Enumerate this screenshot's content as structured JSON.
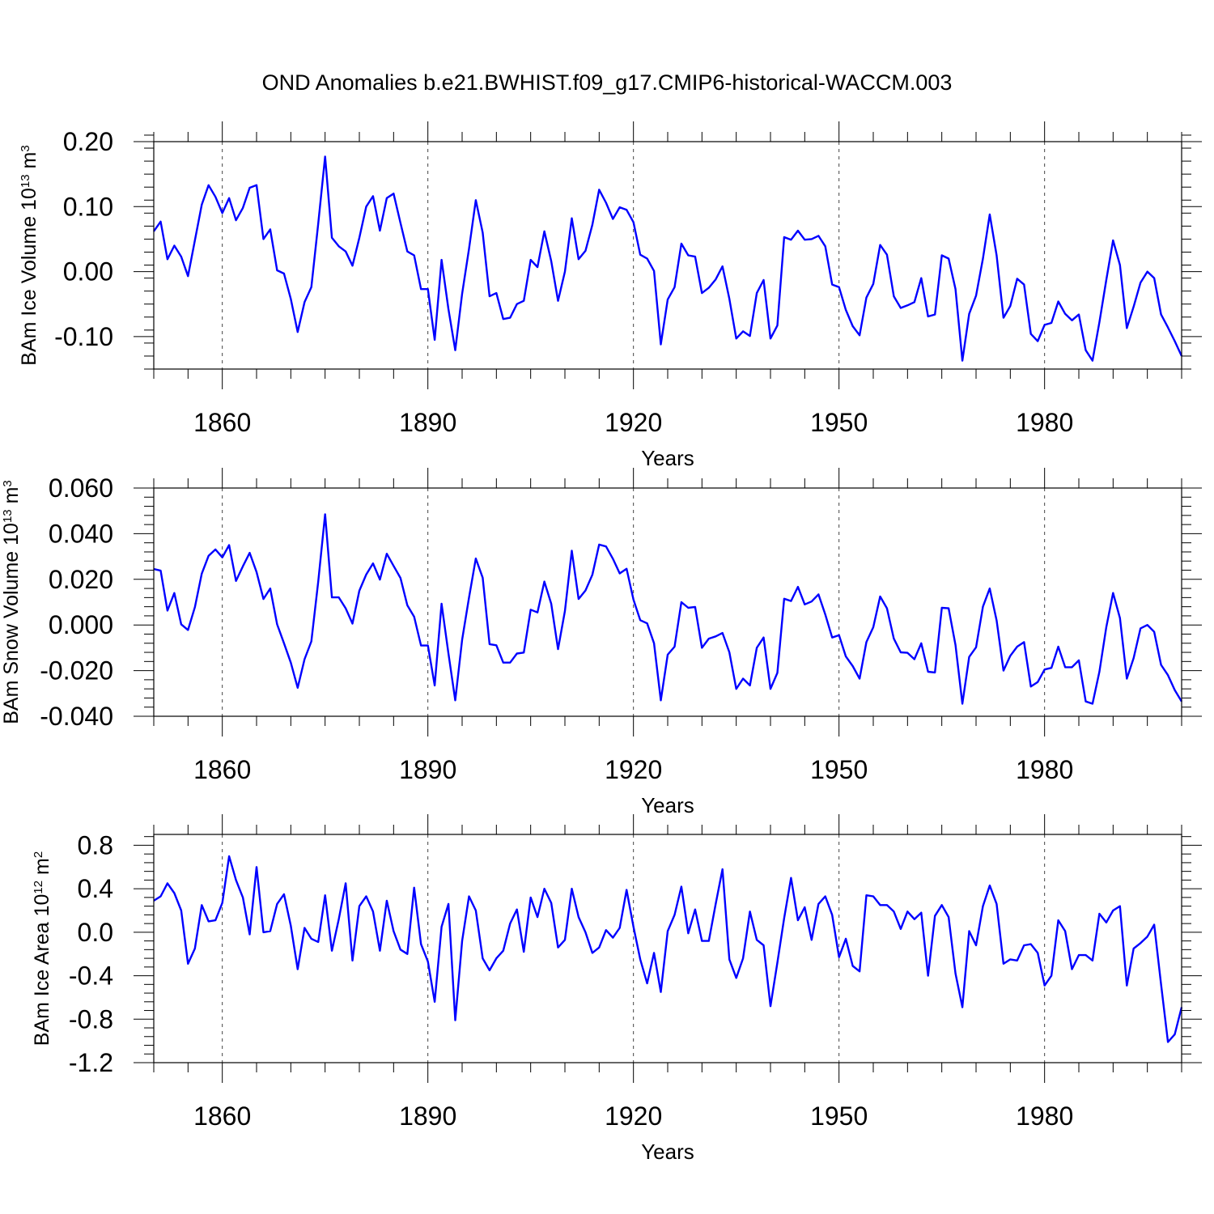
{
  "title": "OND Anomalies b.e21.BWHIST.f09_g17.CMIP6-historical-WACCM.003",
  "line_color": "#0000ff",
  "chart_data": [
    {
      "type": "line",
      "ylabel_prefix": "BAm Ice Volume 10",
      "ylabel_exp": "13",
      "ylabel_unit": " m",
      "ylabel_unit_exp": "3",
      "xlabel": "Years",
      "xlim": [
        1850,
        2000
      ],
      "ylim": [
        -0.15,
        0.2
      ],
      "xticks": [
        1860,
        1890,
        1920,
        1950,
        1980
      ],
      "xtick_labels": [
        "1860",
        "1890",
        "1920",
        "1950",
        "1980"
      ],
      "yticks": [
        -0.1,
        0.0,
        0.1,
        0.2
      ],
      "ytick_labels": [
        "-0.10",
        "0.00",
        "0.10",
        "0.20"
      ],
      "x": [
        1850,
        1851,
        1852,
        1853,
        1854,
        1855,
        1856,
        1857,
        1858,
        1859,
        1860,
        1861,
        1862,
        1863,
        1864,
        1865,
        1866,
        1867,
        1868,
        1869,
        1870,
        1871,
        1872,
        1873,
        1874,
        1875,
        1876,
        1877,
        1878,
        1879,
        1880,
        1881,
        1882,
        1883,
        1884,
        1885,
        1886,
        1887,
        1888,
        1889,
        1890,
        1891,
        1892,
        1893,
        1894,
        1895,
        1896,
        1897,
        1898,
        1899,
        1900,
        1901,
        1902,
        1903,
        1904,
        1905,
        1906,
        1907,
        1908,
        1909,
        1910,
        1911,
        1912,
        1913,
        1914,
        1915,
        1916,
        1917,
        1918,
        1919,
        1920,
        1921,
        1922,
        1923,
        1924,
        1925,
        1926,
        1927,
        1928,
        1929,
        1930,
        1931,
        1932,
        1933,
        1934,
        1935,
        1936,
        1937,
        1938,
        1939,
        1940,
        1941,
        1942,
        1943,
        1944,
        1945,
        1946,
        1947,
        1948,
        1949,
        1950,
        1951,
        1952,
        1953,
        1954,
        1955,
        1956,
        1957,
        1958,
        1959,
        1960,
        1961,
        1962,
        1963,
        1964,
        1965,
        1966,
        1967,
        1968,
        1969,
        1970,
        1971,
        1972,
        1973,
        1974,
        1975,
        1976,
        1977,
        1978,
        1979,
        1980,
        1981,
        1982,
        1983,
        1984,
        1985,
        1986,
        1987,
        1988,
        1989,
        1990,
        1991,
        1992,
        1993,
        1994,
        1995,
        1996,
        1997,
        1998,
        1999,
        2000
      ],
      "values": [
        0.062,
        0.077,
        0.019,
        0.04,
        0.023,
        -0.007,
        0.048,
        0.103,
        0.133,
        0.115,
        0.09,
        0.113,
        0.079,
        0.098,
        0.129,
        0.133,
        0.05,
        0.065,
        0.002,
        -0.003,
        -0.042,
        -0.093,
        -0.047,
        -0.024,
        0.074,
        0.177,
        0.052,
        0.039,
        0.031,
        0.009,
        0.052,
        0.1,
        0.116,
        0.063,
        0.113,
        0.12,
        0.075,
        0.031,
        0.025,
        -0.027,
        -0.027,
        -0.105,
        0.018,
        -0.058,
        -0.121,
        -0.034,
        0.035,
        0.11,
        0.06,
        -0.038,
        -0.033,
        -0.073,
        -0.071,
        -0.05,
        -0.045,
        0.018,
        0.007,
        0.062,
        0.016,
        -0.045,
        0.0,
        0.082,
        0.019,
        0.032,
        0.072,
        0.126,
        0.106,
        0.081,
        0.099,
        0.095,
        0.076,
        0.026,
        0.02,
        0.001,
        -0.112,
        -0.043,
        -0.024,
        0.043,
        0.025,
        0.023,
        -0.033,
        -0.025,
        -0.012,
        0.008,
        -0.042,
        -0.103,
        -0.092,
        -0.099,
        -0.033,
        -0.013,
        -0.103,
        -0.083,
        0.053,
        0.049,
        0.063,
        0.049,
        0.05,
        0.055,
        0.039,
        -0.02,
        -0.024,
        -0.059,
        -0.084,
        -0.098,
        -0.04,
        -0.019,
        0.041,
        0.026,
        -0.038,
        -0.056,
        -0.052,
        -0.047,
        -0.01,
        -0.069,
        -0.066,
        0.025,
        0.02,
        -0.027,
        -0.137,
        -0.065,
        -0.037,
        0.02,
        0.088,
        0.025,
        -0.071,
        -0.053,
        -0.011,
        -0.02,
        -0.096,
        -0.107,
        -0.082,
        -0.079,
        -0.046,
        -0.065,
        -0.075,
        -0.066,
        -0.121,
        -0.137,
        -0.078,
        -0.013,
        0.048,
        0.01,
        -0.087,
        -0.054,
        -0.017,
        0.0,
        -0.01,
        -0.066,
        -0.086,
        -0.107,
        -0.13
      ]
    },
    {
      "type": "line",
      "ylabel_prefix": "BAm Snow Volume 10",
      "ylabel_exp": "13",
      "ylabel_unit": " m",
      "ylabel_unit_exp": "3",
      "xlabel": "Years",
      "xlim": [
        1850,
        2000
      ],
      "ylim": [
        -0.04,
        0.06
      ],
      "xticks": [
        1860,
        1890,
        1920,
        1950,
        1980
      ],
      "xtick_labels": [
        "1860",
        "1890",
        "1920",
        "1950",
        "1980"
      ],
      "yticks": [
        -0.04,
        -0.02,
        0.0,
        0.02,
        0.04,
        0.06
      ],
      "ytick_labels": [
        "-0.040",
        "-0.020",
        "0.000",
        "0.020",
        "0.040",
        "0.060"
      ],
      "x": [
        1850,
        1851,
        1852,
        1853,
        1854,
        1855,
        1856,
        1857,
        1858,
        1859,
        1860,
        1861,
        1862,
        1863,
        1864,
        1865,
        1866,
        1867,
        1868,
        1869,
        1870,
        1871,
        1872,
        1873,
        1874,
        1875,
        1876,
        1877,
        1878,
        1879,
        1880,
        1881,
        1882,
        1883,
        1884,
        1885,
        1886,
        1887,
        1888,
        1889,
        1890,
        1891,
        1892,
        1893,
        1894,
        1895,
        1896,
        1897,
        1898,
        1899,
        1900,
        1901,
        1902,
        1903,
        1904,
        1905,
        1906,
        1907,
        1908,
        1909,
        1910,
        1911,
        1912,
        1913,
        1914,
        1915,
        1916,
        1917,
        1918,
        1919,
        1920,
        1921,
        1922,
        1923,
        1924,
        1925,
        1926,
        1927,
        1928,
        1929,
        1930,
        1931,
        1932,
        1933,
        1934,
        1935,
        1936,
        1937,
        1938,
        1939,
        1940,
        1941,
        1942,
        1943,
        1944,
        1945,
        1946,
        1947,
        1948,
        1949,
        1950,
        1951,
        1952,
        1953,
        1954,
        1955,
        1956,
        1957,
        1958,
        1959,
        1960,
        1961,
        1962,
        1963,
        1964,
        1965,
        1966,
        1967,
        1968,
        1969,
        1970,
        1971,
        1972,
        1973,
        1974,
        1975,
        1976,
        1977,
        1978,
        1979,
        1980,
        1981,
        1982,
        1983,
        1984,
        1985,
        1986,
        1987,
        1988,
        1989,
        1990,
        1991,
        1992,
        1993,
        1994,
        1995,
        1996,
        1997,
        1998,
        1999,
        2000
      ],
      "values": [
        0.0245,
        0.0238,
        0.0063,
        0.014,
        0.0003,
        -0.0022,
        0.0078,
        0.0225,
        0.0303,
        0.0331,
        0.0296,
        0.035,
        0.0193,
        0.0257,
        0.0316,
        0.0232,
        0.0114,
        0.016,
        0.0003,
        -0.008,
        -0.0165,
        -0.0275,
        -0.015,
        -0.0072,
        0.019,
        0.0485,
        0.0121,
        0.0121,
        0.0073,
        0.0006,
        0.015,
        0.0221,
        0.027,
        0.0199,
        0.0312,
        0.0259,
        0.0206,
        0.0086,
        0.0036,
        -0.009,
        -0.009,
        -0.0265,
        0.0093,
        -0.0125,
        -0.033,
        -0.0065,
        0.012,
        0.0291,
        0.0207,
        -0.0084,
        -0.0089,
        -0.0165,
        -0.0165,
        -0.0125,
        -0.0121,
        0.0067,
        0.0055,
        0.019,
        0.0093,
        -0.0106,
        0.0061,
        0.0325,
        0.0114,
        0.0151,
        0.022,
        0.0352,
        0.0344,
        0.029,
        0.0226,
        0.0246,
        0.0111,
        0.0021,
        0.0007,
        -0.008,
        -0.033,
        -0.013,
        -0.0095,
        0.01,
        0.0075,
        0.0079,
        -0.01,
        -0.006,
        -0.005,
        -0.0035,
        -0.012,
        -0.028,
        -0.0235,
        -0.0265,
        -0.01,
        -0.0055,
        -0.028,
        -0.021,
        0.0115,
        0.0105,
        0.0167,
        0.009,
        0.0103,
        0.0134,
        0.0046,
        -0.0055,
        -0.0045,
        -0.0138,
        -0.018,
        -0.0235,
        -0.0075,
        -0.001,
        0.0125,
        0.0073,
        -0.006,
        -0.012,
        -0.0122,
        -0.015,
        -0.008,
        -0.0205,
        -0.0208,
        0.0075,
        0.0073,
        -0.0088,
        -0.0345,
        -0.014,
        -0.0098,
        0.008,
        0.016,
        0.002,
        -0.02,
        -0.0135,
        -0.0095,
        -0.0075,
        -0.027,
        -0.025,
        -0.0195,
        -0.0188,
        -0.0095,
        -0.0185,
        -0.0185,
        -0.0155,
        -0.0335,
        -0.0345,
        -0.0205,
        -0.001,
        0.014,
        0.003,
        -0.0235,
        -0.0145,
        -0.0015,
        0.0,
        -0.003,
        -0.0175,
        -0.022,
        -0.0285,
        -0.0335
      ]
    },
    {
      "type": "line",
      "ylabel_prefix": "BAm Ice Area 10",
      "ylabel_exp": "12",
      "ylabel_unit": " m",
      "ylabel_unit_exp": "2",
      "xlabel": "Years",
      "xlim": [
        1850,
        2000
      ],
      "ylim": [
        -1.2,
        0.9
      ],
      "xticks": [
        1860,
        1890,
        1920,
        1950,
        1980
      ],
      "xtick_labels": [
        "1860",
        "1890",
        "1920",
        "1950",
        "1980"
      ],
      "yticks": [
        -1.2,
        -0.8,
        -0.4,
        0.0,
        0.4,
        0.8
      ],
      "ytick_labels": [
        "-1.2",
        "-0.8",
        "-0.4",
        "0.0",
        "0.4",
        "0.8"
      ],
      "x": [
        1850,
        1851,
        1852,
        1853,
        1854,
        1855,
        1856,
        1857,
        1858,
        1859,
        1860,
        1861,
        1862,
        1863,
        1864,
        1865,
        1866,
        1867,
        1868,
        1869,
        1870,
        1871,
        1872,
        1873,
        1874,
        1875,
        1876,
        1877,
        1878,
        1879,
        1880,
        1881,
        1882,
        1883,
        1884,
        1885,
        1886,
        1887,
        1888,
        1889,
        1890,
        1891,
        1892,
        1893,
        1894,
        1895,
        1896,
        1897,
        1898,
        1899,
        1900,
        1901,
        1902,
        1903,
        1904,
        1905,
        1906,
        1907,
        1908,
        1909,
        1910,
        1911,
        1912,
        1913,
        1914,
        1915,
        1916,
        1917,
        1918,
        1919,
        1920,
        1921,
        1922,
        1923,
        1924,
        1925,
        1926,
        1927,
        1928,
        1929,
        1930,
        1931,
        1932,
        1933,
        1934,
        1935,
        1936,
        1937,
        1938,
        1939,
        1940,
        1941,
        1942,
        1943,
        1944,
        1945,
        1946,
        1947,
        1948,
        1949,
        1950,
        1951,
        1952,
        1953,
        1954,
        1955,
        1956,
        1957,
        1958,
        1959,
        1960,
        1961,
        1962,
        1963,
        1964,
        1965,
        1966,
        1967,
        1968,
        1969,
        1970,
        1971,
        1972,
        1973,
        1974,
        1975,
        1976,
        1977,
        1978,
        1979,
        1980,
        1981,
        1982,
        1983,
        1984,
        1985,
        1986,
        1987,
        1988,
        1989,
        1990,
        1991,
        1992,
        1993,
        1994,
        1995,
        1996,
        1997,
        1998,
        1999,
        2000
      ],
      "values": [
        0.29,
        0.33,
        0.45,
        0.36,
        0.2,
        -0.29,
        -0.15,
        0.25,
        0.1,
        0.11,
        0.27,
        0.7,
        0.48,
        0.32,
        -0.02,
        0.6,
        0.0,
        0.01,
        0.26,
        0.35,
        0.06,
        -0.34,
        0.04,
        -0.06,
        -0.09,
        0.34,
        -0.17,
        0.12,
        0.45,
        -0.26,
        0.24,
        0.33,
        0.19,
        -0.17,
        0.29,
        0.01,
        -0.16,
        -0.2,
        0.41,
        -0.11,
        -0.27,
        -0.64,
        0.05,
        0.26,
        -0.81,
        -0.08,
        0.33,
        0.2,
        -0.24,
        -0.35,
        -0.24,
        -0.17,
        0.08,
        0.21,
        -0.18,
        0.32,
        0.14,
        0.4,
        0.27,
        -0.14,
        -0.07,
        0.4,
        0.14,
        0.0,
        -0.19,
        -0.14,
        0.02,
        -0.05,
        0.04,
        0.39,
        0.05,
        -0.25,
        -0.47,
        -0.19,
        -0.55,
        0.01,
        0.16,
        0.42,
        -0.01,
        0.21,
        -0.08,
        -0.08,
        0.26,
        0.58,
        -0.25,
        -0.42,
        -0.24,
        0.19,
        -0.07,
        -0.12,
        -0.68,
        -0.28,
        0.13,
        0.5,
        0.11,
        0.23,
        -0.07,
        0.26,
        0.33,
        0.16,
        -0.23,
        -0.06,
        -0.31,
        -0.36,
        0.34,
        0.33,
        0.25,
        0.25,
        0.19,
        0.03,
        0.19,
        0.12,
        0.18,
        -0.4,
        0.15,
        0.25,
        0.14,
        -0.38,
        -0.69,
        0.01,
        -0.12,
        0.24,
        0.43,
        0.26,
        -0.29,
        -0.25,
        -0.26,
        -0.12,
        -0.11,
        -0.19,
        -0.49,
        -0.4,
        0.11,
        0.01,
        -0.34,
        -0.21,
        -0.21,
        -0.26,
        0.17,
        0.09,
        0.2,
        0.24,
        -0.49,
        -0.15,
        -0.1,
        -0.04,
        0.07,
        -0.48,
        -1.01,
        -0.94,
        -0.69
      ]
    }
  ]
}
